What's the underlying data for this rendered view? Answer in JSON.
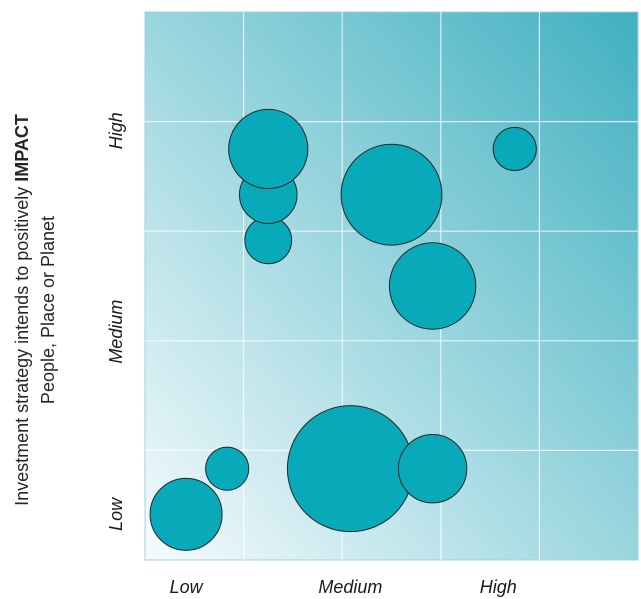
{
  "chart_data": {
    "type": "scatter",
    "subtype": "bubble",
    "title": "",
    "ylabel_line1_prefix": "Investment strategy intends to positively ",
    "ylabel_line1_emphasis": "IMPACT",
    "ylabel_line2": "People, Place or Planet",
    "xlabel": "",
    "xlim": [
      0,
      6
    ],
    "ylim": [
      0,
      6
    ],
    "x_ticks": [
      {
        "label": "Low",
        "value": 0.5
      },
      {
        "label": "Medium",
        "value": 2.5
      },
      {
        "label": "High",
        "value": 4.3
      }
    ],
    "y_ticks": [
      {
        "label": "Low",
        "value": 0.5
      },
      {
        "label": "Medium",
        "value": 2.5
      },
      {
        "label": "High",
        "value": 4.7
      }
    ],
    "grid": true,
    "grid_cols": 5,
    "grid_rows": 5,
    "bubble_color": "#08aab9",
    "bubble_stroke": "#262626",
    "background_gradient": [
      "#f5fbfd",
      "#40b0c0"
    ],
    "points": [
      {
        "x": 0.5,
        "y": 0.5,
        "size": 1.0
      },
      {
        "x": 1.0,
        "y": 1.0,
        "size": 0.6
      },
      {
        "x": 2.5,
        "y": 1.0,
        "size": 1.75
      },
      {
        "x": 3.5,
        "y": 1.0,
        "size": 0.95
      },
      {
        "x": 3.5,
        "y": 3.0,
        "size": 1.2
      },
      {
        "x": 3.0,
        "y": 4.0,
        "size": 1.4
      },
      {
        "x": 1.5,
        "y": 3.5,
        "size": 0.65
      },
      {
        "x": 1.5,
        "y": 4.0,
        "size": 0.8
      },
      {
        "x": 1.5,
        "y": 4.5,
        "size": 1.1
      },
      {
        "x": 4.5,
        "y": 4.5,
        "size": 0.6
      }
    ]
  }
}
